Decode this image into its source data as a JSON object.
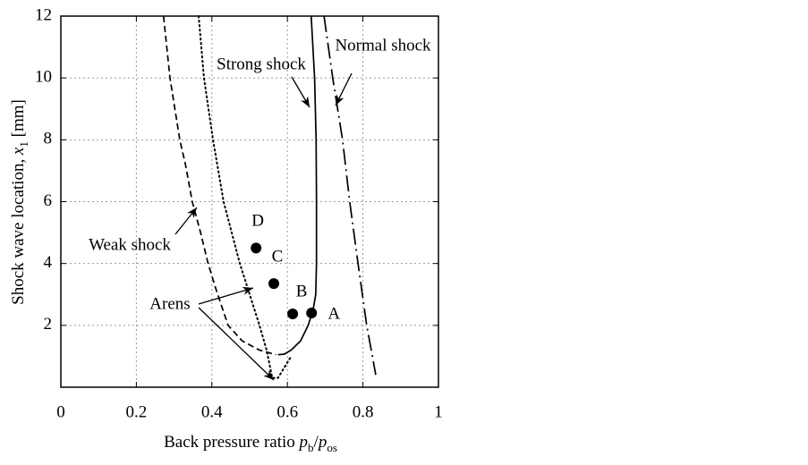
{
  "chart_data": {
    "type": "line",
    "xlabel_parts": [
      "Back pressure ratio ",
      "p",
      "b",
      "/",
      "p",
      "os"
    ],
    "ylabel_parts": [
      "Shock wave location, ",
      "x",
      "1",
      " [mm]"
    ],
    "xlim": [
      0,
      1
    ],
    "ylim": [
      0,
      12
    ],
    "xticks": [
      0,
      0.2,
      0.4,
      0.6,
      0.8,
      1
    ],
    "yticks": [
      2,
      4,
      6,
      8,
      10,
      12
    ],
    "grid": true,
    "series": [
      {
        "name": "Weak shock",
        "color": "#000000",
        "style": "dashed",
        "x": [
          0.272,
          0.289,
          0.315,
          0.33,
          0.348,
          0.37,
          0.39,
          0.41,
          0.443,
          0.48,
          0.526,
          0.57
        ],
        "y": [
          12,
          10,
          8,
          7.2,
          6,
          5,
          4,
          3.2,
          2,
          1.5,
          1.2,
          1.05
        ]
      },
      {
        "name": "Arens",
        "color": "#000000",
        "style": "dotted",
        "x": [
          0.365,
          0.379,
          0.403,
          0.431,
          0.474,
          0.526,
          0.545,
          0.56,
          0.575,
          0.6,
          0.61
        ],
        "y": [
          12,
          10,
          8,
          6,
          4,
          2,
          1.2,
          0.3,
          0.3,
          0.8,
          1.0
        ]
      },
      {
        "name": "Strong shock",
        "color": "#000000",
        "style": "solid",
        "x": [
          0.663,
          0.672,
          0.676,
          0.677,
          0.677,
          0.675,
          0.668,
          0.655,
          0.635,
          0.61,
          0.592,
          0.575
        ],
        "y": [
          12,
          10,
          8,
          6,
          4,
          3,
          2.5,
          2,
          1.5,
          1.2,
          1.07,
          1.05
        ]
      },
      {
        "name": "Normal shock",
        "color": "#000000",
        "style": "dashdot",
        "x": [
          0.697,
          0.72,
          0.746,
          0.765,
          0.787,
          0.81,
          0.834
        ],
        "y": [
          12,
          10,
          8,
          6,
          4,
          2,
          0.4
        ]
      }
    ],
    "points": {
      "type": "scatter",
      "color": "#000000",
      "labels": [
        "A",
        "B",
        "C",
        "D"
      ],
      "x": [
        0.664,
        0.614,
        0.564,
        0.517
      ],
      "y": [
        2.4,
        2.37,
        3.35,
        4.5
      ]
    }
  }
}
